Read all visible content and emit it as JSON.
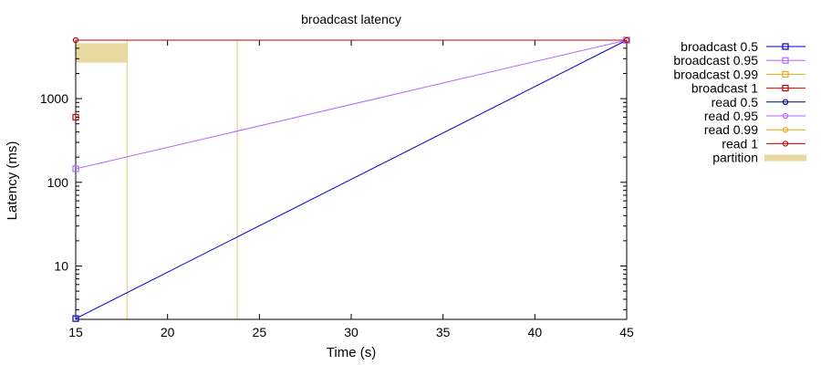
{
  "chart_data": {
    "type": "line",
    "title": "broadcast latency",
    "xlabel": "Time (s)",
    "ylabel": "Latency (ms)",
    "xlim": [
      15,
      45
    ],
    "ylim": [
      2.3,
      5000
    ],
    "yscale": "log",
    "x_ticks": [
      15,
      20,
      25,
      30,
      35,
      40,
      45
    ],
    "y_ticks": [
      10,
      100,
      1000
    ],
    "grid": false,
    "legend_position": "right",
    "series": [
      {
        "name": "broadcast 0.5",
        "color": "#0000cc",
        "marker": "square",
        "line": true,
        "x": [
          15,
          45
        ],
        "y": [
          2.35,
          5000
        ]
      },
      {
        "name": "broadcast 0.95",
        "color": "#b266ff",
        "marker": "square",
        "line": true,
        "x": [
          15,
          45
        ],
        "y": [
          145,
          5000
        ]
      },
      {
        "name": "broadcast 0.99",
        "color": "#e6a817",
        "marker": "square",
        "line": true,
        "x": [],
        "y": []
      },
      {
        "name": "broadcast 1",
        "color": "#cc0000",
        "marker": "square",
        "line": true,
        "x": [
          15
        ],
        "y": [
          600
        ]
      },
      {
        "name": "read 0.5",
        "color": "#000080",
        "marker": "circle",
        "line": true,
        "x": [],
        "y": []
      },
      {
        "name": "read 0.95",
        "color": "#b266ff",
        "marker": "circle",
        "line": true,
        "x": [],
        "y": []
      },
      {
        "name": "read 0.99",
        "color": "#e6a817",
        "marker": "circle",
        "line": true,
        "x": [],
        "y": []
      },
      {
        "name": "read 1",
        "color": "#cc0000",
        "marker": "circle",
        "line": true,
        "x": [
          15,
          45
        ],
        "y": [
          5000,
          5000
        ]
      }
    ],
    "partition": {
      "name": "partition",
      "color": "#e8d9a0",
      "intervals": [
        [
          15,
          17.8
        ],
        [
          23.8,
          23.8
        ]
      ],
      "band_y": [
        2700,
        4600
      ]
    }
  }
}
